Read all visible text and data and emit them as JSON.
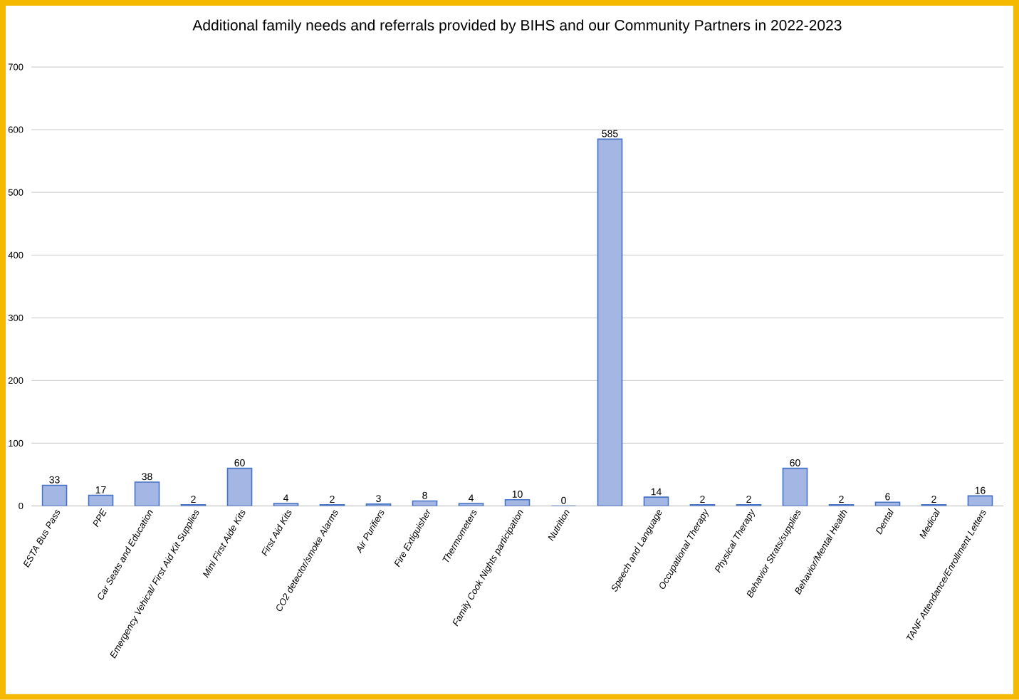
{
  "chart_data": {
    "type": "bar",
    "title": "Additional family needs and referrals provided by BIHS and our Community Partners in 2022-2023",
    "categories": [
      "ESTA Bus Pass",
      "PPE",
      "Car Seats and Education",
      "Emergency Vehical/ First Aid Kit Supplies",
      "Mini First Aide Kits",
      "First Aid Kits",
      "CO2 detector/smoke Alarms",
      "Air Purifiers",
      "Fire Extiguisher",
      "Thermometers",
      "Family Cook Nights participation",
      "Nutrition",
      null,
      "Speech and Language",
      "Occupational Therapy",
      "Physical Therapy",
      "Behavior Strats/supplies",
      "Behavior/Mental Health",
      "Dental",
      "Medical",
      "TANF Attendance/Enrollment  Letters"
    ],
    "values": [
      33,
      17,
      38,
      2,
      60,
      4,
      2,
      3,
      8,
      4,
      10,
      0,
      585,
      14,
      2,
      2,
      60,
      2,
      6,
      2,
      16
    ],
    "color": "#a4b6e3",
    "ylim": [
      0,
      700
    ],
    "yticks": [
      0,
      100,
      200,
      300,
      400,
      500,
      600,
      700
    ],
    "grid": "y",
    "data_labels": true
  }
}
